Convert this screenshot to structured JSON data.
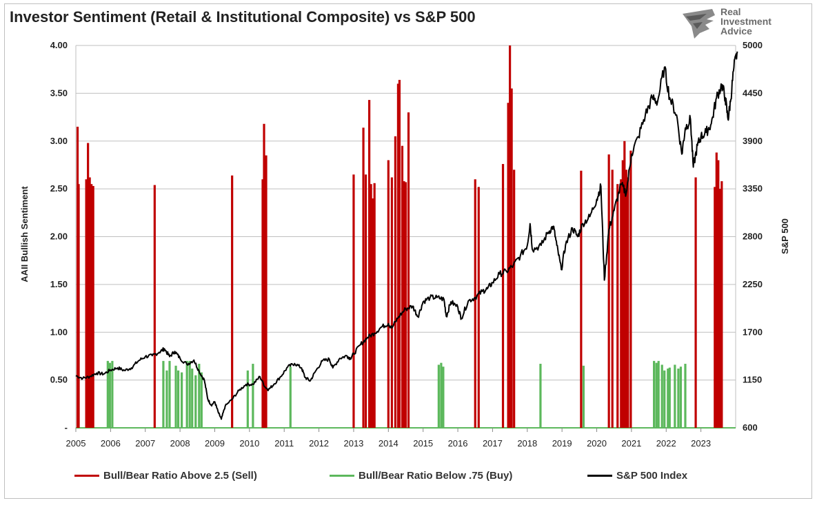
{
  "title": "Investor Sentiment (Retail & Institutional Composite) vs S&P 500",
  "logo": {
    "lines": [
      "Real",
      "Investment",
      "Advice"
    ],
    "icon": "eagle-head-icon",
    "color": "#6b6b6b"
  },
  "colors": {
    "sell": "#c00000",
    "buy": "#5cb85c",
    "spx": "#000000",
    "grid": "#bfbfbf"
  },
  "chart_data": {
    "type": "bar",
    "title": "Investor Sentiment (Retail & Institutional Composite) vs S&P 500",
    "ylabel": "AAII Bullish Sentiment",
    "y2label": "S&P 500",
    "ylim": [
      0,
      4.0
    ],
    "y2lim": [
      600,
      5000
    ],
    "y_ticks": [
      "-",
      "0.50",
      "1.00",
      "1.50",
      "2.00",
      "2.50",
      "3.00",
      "3.50",
      "4.00"
    ],
    "y2_ticks": [
      "600",
      "1150",
      "1700",
      "2250",
      "2800",
      "3350",
      "3900",
      "4450",
      "5000"
    ],
    "xlim": [
      2005,
      2024
    ],
    "x_ticks": [
      "2005",
      "2006",
      "2007",
      "2008",
      "2009",
      "2010",
      "2011",
      "2012",
      "2013",
      "2014",
      "2015",
      "2016",
      "2017",
      "2018",
      "2019",
      "2020",
      "2021",
      "2022",
      "2023"
    ],
    "grid": true,
    "legend_position": "bottom",
    "series": [
      {
        "name": "Bull/Bear Ratio Above 2.5 (Sell)",
        "type": "bar",
        "axis": "left",
        "points": [
          [
            2005.05,
            3.15
          ],
          [
            2005.08,
            2.55
          ],
          [
            2005.3,
            2.6
          ],
          [
            2005.35,
            2.98
          ],
          [
            2005.4,
            2.62
          ],
          [
            2005.45,
            2.55
          ],
          [
            2005.5,
            2.53
          ],
          [
            2007.27,
            2.54
          ],
          [
            2009.5,
            2.64
          ],
          [
            2010.38,
            2.6
          ],
          [
            2010.42,
            3.18
          ],
          [
            2010.48,
            2.85
          ],
          [
            2013.0,
            2.65
          ],
          [
            2013.28,
            3.14
          ],
          [
            2013.35,
            2.65
          ],
          [
            2013.45,
            3.43
          ],
          [
            2013.5,
            2.55
          ],
          [
            2013.55,
            2.4
          ],
          [
            2013.6,
            2.56
          ],
          [
            2014.0,
            2.8
          ],
          [
            2014.1,
            2.62
          ],
          [
            2014.2,
            3.05
          ],
          [
            2014.28,
            3.6
          ],
          [
            2014.32,
            3.64
          ],
          [
            2014.4,
            2.95
          ],
          [
            2014.45,
            2.58
          ],
          [
            2014.5,
            2.57
          ],
          [
            2014.58,
            3.3
          ],
          [
            2016.5,
            2.6
          ],
          [
            2016.6,
            2.52
          ],
          [
            2017.3,
            2.76
          ],
          [
            2017.45,
            3.4
          ],
          [
            2017.5,
            4.0
          ],
          [
            2017.55,
            3.55
          ],
          [
            2017.62,
            2.7
          ],
          [
            2019.55,
            2.69
          ],
          [
            2020.35,
            2.86
          ],
          [
            2020.45,
            2.7
          ],
          [
            2020.6,
            2.55
          ],
          [
            2020.7,
            2.6
          ],
          [
            2020.75,
            2.8
          ],
          [
            2020.8,
            3.0
          ],
          [
            2020.85,
            2.7
          ],
          [
            2020.9,
            2.62
          ],
          [
            2020.98,
            2.9
          ],
          [
            2022.85,
            2.62
          ],
          [
            2023.4,
            2.52
          ],
          [
            2023.45,
            2.88
          ],
          [
            2023.5,
            2.8
          ],
          [
            2023.55,
            2.5
          ],
          [
            2023.6,
            2.58
          ]
        ]
      },
      {
        "name": "Bull/Bear Ratio Below .75 (Buy)",
        "type": "bar",
        "axis": "left",
        "points": [
          [
            2005.92,
            0.7
          ],
          [
            2005.98,
            0.68
          ],
          [
            2006.05,
            0.7
          ],
          [
            2007.52,
            0.7
          ],
          [
            2007.62,
            0.6
          ],
          [
            2007.7,
            0.7
          ],
          [
            2007.88,
            0.65
          ],
          [
            2007.95,
            0.6
          ],
          [
            2008.05,
            0.58
          ],
          [
            2008.2,
            0.7
          ],
          [
            2008.28,
            0.7
          ],
          [
            2008.35,
            0.62
          ],
          [
            2008.45,
            0.55
          ],
          [
            2008.55,
            0.67
          ],
          [
            2008.62,
            0.58
          ],
          [
            2009.95,
            0.6
          ],
          [
            2010.1,
            0.67
          ],
          [
            2011.18,
            0.64
          ],
          [
            2015.45,
            0.66
          ],
          [
            2015.52,
            0.68
          ],
          [
            2015.58,
            0.64
          ],
          [
            2018.38,
            0.67
          ],
          [
            2019.62,
            0.65
          ],
          [
            2021.65,
            0.7
          ],
          [
            2021.72,
            0.68
          ],
          [
            2021.78,
            0.7
          ],
          [
            2021.88,
            0.66
          ],
          [
            2021.95,
            0.6
          ],
          [
            2022.05,
            0.62
          ],
          [
            2022.1,
            0.63
          ],
          [
            2022.25,
            0.66
          ],
          [
            2022.35,
            0.62
          ],
          [
            2022.42,
            0.64
          ],
          [
            2022.55,
            0.67
          ]
        ]
      },
      {
        "name": "S&P 500 Index",
        "type": "line",
        "axis": "right",
        "points": [
          [
            2005.0,
            1200
          ],
          [
            2005.2,
            1170
          ],
          [
            2005.4,
            1190
          ],
          [
            2005.6,
            1230
          ],
          [
            2005.8,
            1220
          ],
          [
            2006.0,
            1265
          ],
          [
            2006.2,
            1290
          ],
          [
            2006.4,
            1260
          ],
          [
            2006.6,
            1290
          ],
          [
            2006.8,
            1370
          ],
          [
            2007.0,
            1420
          ],
          [
            2007.2,
            1430
          ],
          [
            2007.4,
            1470
          ],
          [
            2007.55,
            1510
          ],
          [
            2007.7,
            1420
          ],
          [
            2007.85,
            1480
          ],
          [
            2008.0,
            1400
          ],
          [
            2008.2,
            1330
          ],
          [
            2008.4,
            1380
          ],
          [
            2008.55,
            1250
          ],
          [
            2008.7,
            1150
          ],
          [
            2008.8,
            930
          ],
          [
            2008.9,
            860
          ],
          [
            2009.0,
            900
          ],
          [
            2009.1,
            780
          ],
          [
            2009.19,
            700
          ],
          [
            2009.3,
            850
          ],
          [
            2009.5,
            930
          ],
          [
            2009.7,
            1030
          ],
          [
            2009.9,
            1100
          ],
          [
            2010.1,
            1100
          ],
          [
            2010.3,
            1190
          ],
          [
            2010.45,
            1070
          ],
          [
            2010.55,
            1040
          ],
          [
            2010.7,
            1100
          ],
          [
            2010.9,
            1190
          ],
          [
            2011.1,
            1300
          ],
          [
            2011.3,
            1340
          ],
          [
            2011.5,
            1290
          ],
          [
            2011.6,
            1180
          ],
          [
            2011.75,
            1140
          ],
          [
            2011.9,
            1250
          ],
          [
            2012.1,
            1370
          ],
          [
            2012.3,
            1390
          ],
          [
            2012.4,
            1290
          ],
          [
            2012.6,
            1400
          ],
          [
            2012.8,
            1430
          ],
          [
            2012.9,
            1400
          ],
          [
            2013.0,
            1450
          ],
          [
            2013.2,
            1560
          ],
          [
            2013.4,
            1640
          ],
          [
            2013.6,
            1690
          ],
          [
            2013.8,
            1760
          ],
          [
            2014.0,
            1800
          ],
          [
            2014.1,
            1750
          ],
          [
            2014.3,
            1880
          ],
          [
            2014.5,
            1970
          ],
          [
            2014.7,
            2000
          ],
          [
            2014.85,
            1880
          ],
          [
            2015.0,
            2050
          ],
          [
            2015.2,
            2100
          ],
          [
            2015.4,
            2100
          ],
          [
            2015.6,
            2080
          ],
          [
            2015.67,
            1880
          ],
          [
            2015.8,
            2050
          ],
          [
            2016.0,
            1990
          ],
          [
            2016.1,
            1860
          ],
          [
            2016.3,
            2060
          ],
          [
            2016.5,
            2100
          ],
          [
            2016.7,
            2170
          ],
          [
            2016.85,
            2200
          ],
          [
            2017.0,
            2270
          ],
          [
            2017.2,
            2370
          ],
          [
            2017.4,
            2400
          ],
          [
            2017.6,
            2470
          ],
          [
            2017.8,
            2580
          ],
          [
            2018.0,
            2700
          ],
          [
            2018.08,
            2950
          ],
          [
            2018.15,
            2650
          ],
          [
            2018.4,
            2700
          ],
          [
            2018.6,
            2850
          ],
          [
            2018.75,
            2920
          ],
          [
            2018.85,
            2700
          ],
          [
            2018.98,
            2420
          ],
          [
            2019.1,
            2700
          ],
          [
            2019.3,
            2900
          ],
          [
            2019.45,
            2800
          ],
          [
            2019.6,
            2950
          ],
          [
            2019.8,
            3030
          ],
          [
            2020.0,
            3230
          ],
          [
            2020.12,
            3380
          ],
          [
            2020.22,
            2300
          ],
          [
            2020.35,
            2880
          ],
          [
            2020.5,
            3100
          ],
          [
            2020.7,
            3400
          ],
          [
            2020.85,
            3300
          ],
          [
            2021.0,
            3750
          ],
          [
            2021.2,
            3950
          ],
          [
            2021.4,
            4200
          ],
          [
            2021.6,
            4400
          ],
          [
            2021.75,
            4350
          ],
          [
            2021.95,
            4750
          ],
          [
            2022.1,
            4400
          ],
          [
            2022.3,
            4200
          ],
          [
            2022.45,
            3750
          ],
          [
            2022.55,
            4050
          ],
          [
            2022.7,
            4150
          ],
          [
            2022.78,
            3600
          ],
          [
            2022.9,
            3850
          ],
          [
            2023.0,
            3950
          ],
          [
            2023.15,
            4000
          ],
          [
            2023.3,
            4100
          ],
          [
            2023.45,
            4400
          ],
          [
            2023.6,
            4550
          ],
          [
            2023.7,
            4400
          ],
          [
            2023.78,
            4150
          ],
          [
            2023.85,
            4350
          ],
          [
            2023.95,
            4750
          ],
          [
            2024.05,
            4930
          ]
        ]
      }
    ]
  }
}
